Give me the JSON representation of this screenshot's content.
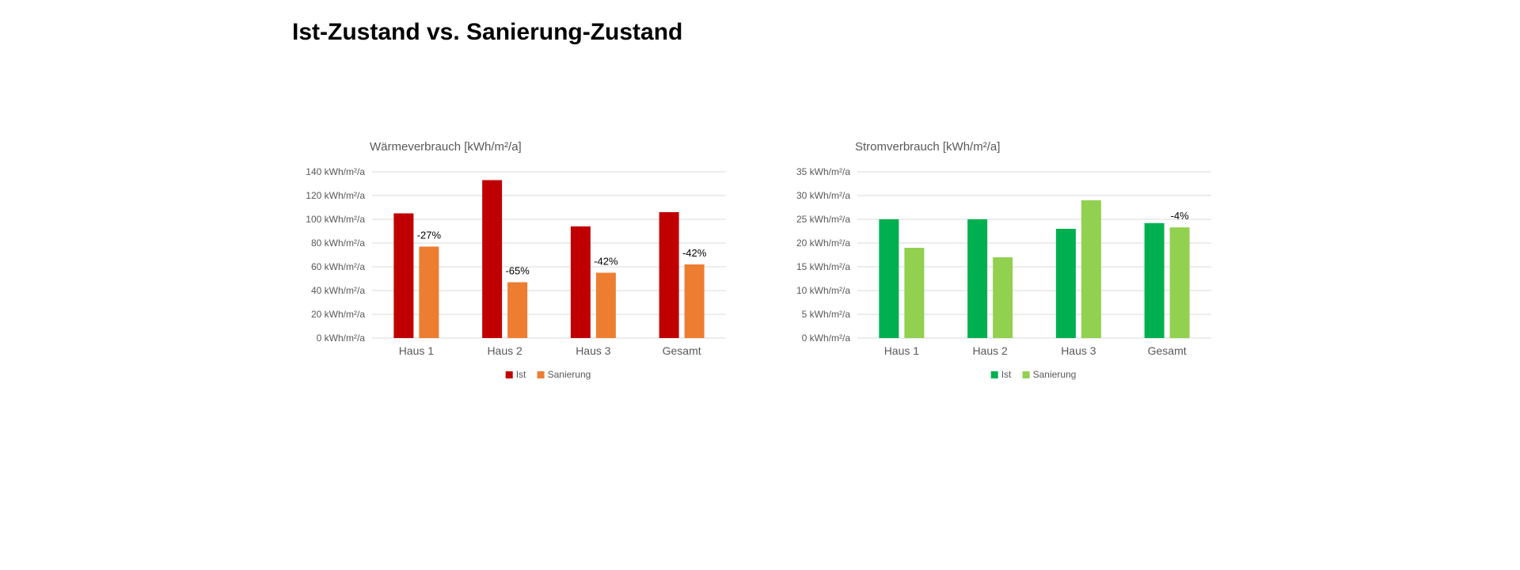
{
  "page": {
    "title": "Ist-Zustand vs. Sanierung-Zustand"
  },
  "colors": {
    "waerme_ist": "#c00000",
    "waerme_sanierung": "#ed7d31",
    "strom_ist": "#00b050",
    "strom_sanierung": "#92d050",
    "gridline": "#d9d9d9",
    "axis_text": "#595959"
  },
  "chart_data": [
    {
      "id": "chart-waerme",
      "type": "bar",
      "title": "Wärmeverbrauch [kWh/m²/a]",
      "xlabel": "",
      "ylabel": "",
      "categories": [
        "Haus 1",
        "Haus 2",
        "Haus 3",
        "Gesamt"
      ],
      "series": [
        {
          "name": "Ist",
          "values": [
            105,
            133,
            94,
            106
          ],
          "color": "#c00000"
        },
        {
          "name": "Sanierung",
          "values": [
            77,
            47,
            55,
            62
          ],
          "color": "#ed7d31"
        }
      ],
      "data_labels": [
        "-27%",
        "-65%",
        "-42%",
        "-42%"
      ],
      "ylim": [
        0,
        140
      ],
      "yticks": [
        {
          "value": 0,
          "label": "0 kWh/m²/a"
        },
        {
          "value": 20,
          "label": "20 kWh/m²/a"
        },
        {
          "value": 40,
          "label": "40 kWh/m²/a"
        },
        {
          "value": 60,
          "label": "60 kWh/m²/a"
        },
        {
          "value": 80,
          "label": "80 kWh/m²/a"
        },
        {
          "value": 100,
          "label": "100 kWh/m²/a"
        },
        {
          "value": 120,
          "label": "120 kWh/m²/a"
        },
        {
          "value": 140,
          "label": "140 kWh/m²/a"
        }
      ],
      "grid": true,
      "legend": "bottom"
    },
    {
      "id": "chart-strom",
      "type": "bar",
      "title": "Stromverbrauch [kWh/m²/a]",
      "xlabel": "",
      "ylabel": "",
      "categories": [
        "Haus 1",
        "Haus 2",
        "Haus 3",
        "Gesamt"
      ],
      "series": [
        {
          "name": "Ist",
          "values": [
            25,
            25,
            23,
            24.2
          ],
          "color": "#00b050"
        },
        {
          "name": "Sanierung",
          "values": [
            19,
            17,
            29,
            23.3
          ],
          "color": "#92d050"
        }
      ],
      "data_labels": [
        "",
        "",
        "",
        "-4%"
      ],
      "ylim": [
        0,
        35
      ],
      "yticks": [
        {
          "value": 0,
          "label": "0 kWh/m²/a"
        },
        {
          "value": 5,
          "label": "5 kWh/m²/a"
        },
        {
          "value": 10,
          "label": "10 kWh/m²/a"
        },
        {
          "value": 15,
          "label": "15 kWh/m²/a"
        },
        {
          "value": 20,
          "label": "20 kWh/m²/a"
        },
        {
          "value": 25,
          "label": "25 kWh/m²/a"
        },
        {
          "value": 30,
          "label": "30 kWh/m²/a"
        },
        {
          "value": 35,
          "label": "35 kWh/m²/a"
        }
      ],
      "grid": true,
      "legend": "bottom"
    }
  ]
}
